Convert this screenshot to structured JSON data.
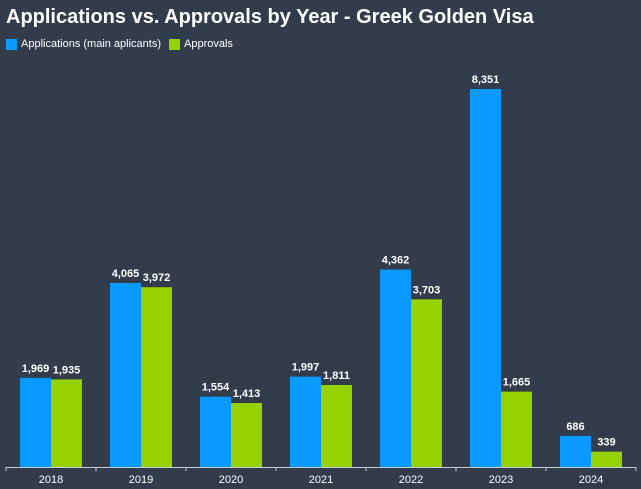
{
  "chart_data": {
    "type": "bar",
    "title": "Applications vs. Approvals by Year - Greek Golden Visa",
    "categories": [
      "2018",
      "2019",
      "2020",
      "2021",
      "2022",
      "2023",
      "2024"
    ],
    "series": [
      {
        "name": "Applications (main aplicants)",
        "color": "#0a99ff",
        "values": [
          1969,
          4065,
          1554,
          1997,
          4362,
          8351,
          686
        ],
        "labels": [
          "1,969",
          "4,065",
          "1,554",
          "1,997",
          "4,362",
          "8,351",
          "686"
        ]
      },
      {
        "name": "Approvals",
        "color": "#96d100",
        "values": [
          1935,
          3972,
          1413,
          1811,
          3703,
          1665,
          339
        ],
        "labels": [
          "1,935",
          "3,972",
          "1,413",
          "1,811",
          "3,703",
          "1,665",
          "339"
        ]
      }
    ],
    "xlabel": "",
    "ylabel": "",
    "ylim": [
      0,
      8351
    ],
    "grid": false,
    "legend_position": "top-left"
  },
  "colors": {
    "background": "#323c4b",
    "axis": "#c8ccd2",
    "text": "#ffffff"
  }
}
